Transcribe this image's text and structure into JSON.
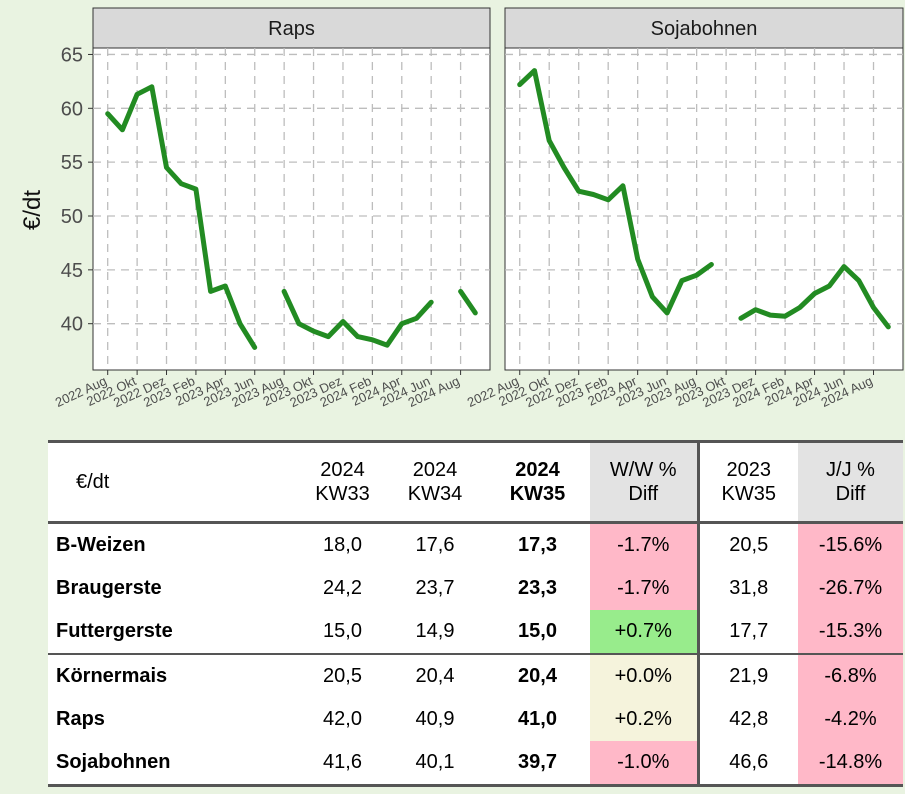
{
  "chart_data": [
    {
      "type": "line",
      "title": "Raps",
      "ylabel": "€/dt",
      "x": [
        "2022-08",
        "2022-09",
        "2022-10",
        "2022-11",
        "2022-12",
        "2023-01",
        "2023-02",
        "2023-03",
        "2023-04",
        "2023-05",
        "2023-06",
        "2023-07",
        "2023-08",
        "2023-09",
        "2023-10",
        "2023-11",
        "2023-12",
        "2024-01",
        "2024-02",
        "2024-03",
        "2024-04",
        "2024-05",
        "2024-06",
        "2024-07",
        "2024-08",
        "2024-09"
      ],
      "series": [
        {
          "name": "Raps",
          "color": "#228b22",
          "values": [
            59.5,
            58,
            61.3,
            62,
            54.5,
            53,
            52.5,
            43,
            43.5,
            40,
            37.8,
            null,
            43,
            40,
            39.3,
            38.8,
            40.2,
            38.8,
            38.5,
            38,
            40,
            40.5,
            42,
            null,
            43,
            41
          ]
        }
      ],
      "xlim": [
        "2022-07",
        "2024-10"
      ],
      "xticks": [
        {
          "value": "2022-08",
          "label": "2022 Aug"
        },
        {
          "value": "2022-10",
          "label": "2022 Okt"
        },
        {
          "value": "2022-12",
          "label": "2022 Dez"
        },
        {
          "value": "2023-02",
          "label": "2023 Feb"
        },
        {
          "value": "2023-04",
          "label": "2023 Apr"
        },
        {
          "value": "2023-06",
          "label": "2023 Jun"
        },
        {
          "value": "2023-08",
          "label": "2023 Aug"
        },
        {
          "value": "2023-10",
          "label": "2023 Okt"
        },
        {
          "value": "2023-12",
          "label": "2023 Dez"
        },
        {
          "value": "2024-02",
          "label": "2024 Feb"
        },
        {
          "value": "2024-04",
          "label": "2024 Apr"
        },
        {
          "value": "2024-06",
          "label": "2024 Jun"
        },
        {
          "value": "2024-08",
          "label": "2024 Aug"
        }
      ],
      "ylim": [
        35.7,
        65.6
      ],
      "yticks": [
        40,
        45,
        50,
        55,
        60,
        65
      ],
      "grid": true
    },
    {
      "type": "line",
      "title": "Sojabohnen",
      "x": [
        "2022-08",
        "2022-09",
        "2022-10",
        "2022-11",
        "2022-12",
        "2023-01",
        "2023-02",
        "2023-03",
        "2023-04",
        "2023-05",
        "2023-06",
        "2023-07",
        "2023-08",
        "2023-09",
        "2023-10",
        "2023-11",
        "2023-12",
        "2024-01",
        "2024-02",
        "2024-03",
        "2024-04",
        "2024-05",
        "2024-06",
        "2024-07",
        "2024-08",
        "2024-09"
      ],
      "series": [
        {
          "name": "Sojabohnen",
          "color": "#228b22",
          "values": [
            62.2,
            63.5,
            57,
            54.5,
            52.3,
            52,
            51.5,
            52.8,
            46,
            42.5,
            41,
            44,
            44.5,
            45.5,
            null,
            40.5,
            41.3,
            40.8,
            40.7,
            41.5,
            42.8,
            43.5,
            45.3,
            44,
            41.5,
            39.7
          ]
        }
      ],
      "xlim": [
        "2022-07",
        "2024-10"
      ],
      "xticks": [
        {
          "value": "2022-08",
          "label": "2022 Aug"
        },
        {
          "value": "2022-10",
          "label": "2022 Okt"
        },
        {
          "value": "2022-12",
          "label": "2022 Dez"
        },
        {
          "value": "2023-02",
          "label": "2023 Feb"
        },
        {
          "value": "2023-04",
          "label": "2023 Apr"
        },
        {
          "value": "2023-06",
          "label": "2023 Jun"
        },
        {
          "value": "2023-08",
          "label": "2023 Aug"
        },
        {
          "value": "2023-10",
          "label": "2023 Okt"
        },
        {
          "value": "2023-12",
          "label": "2023 Dez"
        },
        {
          "value": "2024-02",
          "label": "2024 Feb"
        },
        {
          "value": "2024-04",
          "label": "2024 Apr"
        },
        {
          "value": "2024-06",
          "label": "2024 Jun"
        },
        {
          "value": "2024-08",
          "label": "2024 Aug"
        }
      ],
      "ylim": [
        35.7,
        65.6
      ],
      "yticks": [
        40,
        45,
        50,
        55,
        60,
        65
      ],
      "grid": true
    }
  ],
  "table": {
    "header": [
      "€/dt",
      "2024\nKW33",
      "2024\nKW34",
      "2024\nKW35",
      "W/W %\nDiff",
      "2023\nKW35",
      "J/J %\nDiff"
    ],
    "rows": [
      [
        "B-Weizen",
        "18,0",
        "17,6",
        "17,3",
        "-1.7%",
        "20,5",
        "-15.6%"
      ],
      [
        "Braugerste",
        "24,2",
        "23,7",
        "23,3",
        "-1.7%",
        "31,8",
        "-26.7%"
      ],
      [
        "Futtergerste",
        "15,0",
        "14,9",
        "15,0",
        "+0.7%",
        "17,7",
        "-15.3%"
      ],
      [
        "Körnermais",
        "20,5",
        "20,4",
        "20,4",
        "+0.0%",
        "21,9",
        "-6.8%"
      ],
      [
        "Raps",
        "42,0",
        "40,9",
        "41,0",
        "+0.2%",
        "42,8",
        "-4.2%"
      ],
      [
        "Sojabohnen",
        "41,6",
        "40,1",
        "39,7",
        "-1.0%",
        "46,6",
        "-14.8%"
      ]
    ],
    "ww_colors": [
      "#ffb8c8",
      "#ffb8c8",
      "#98ec8c",
      "#f5f3dc",
      "#f5f3dc",
      "#ffb8c8"
    ],
    "yy_colors": [
      "#ffb8c8",
      "#ffb8c8",
      "#ffb8c8",
      "#ffb8c8",
      "#ffb8c8",
      "#ffb8c8"
    ]
  }
}
